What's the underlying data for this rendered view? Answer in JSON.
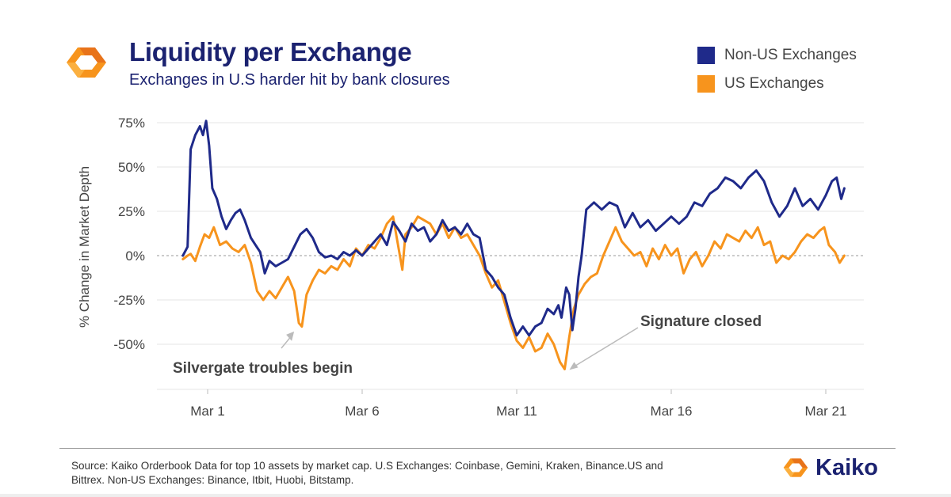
{
  "header": {
    "title": "Liquidity per Exchange",
    "subtitle": "Exchanges in U.S harder hit by bank closures",
    "logo_icon": "kaiko-logo-icon"
  },
  "legend": [
    {
      "label": "Non-US Exchanges",
      "color": "#1f2a8a"
    },
    {
      "label": "US Exchanges",
      "color": "#f7941d"
    }
  ],
  "chart_data": {
    "type": "line",
    "title": "Liquidity per Exchange",
    "subtitle": "Exchanges in U.S harder hit by bank closures",
    "ylabel": "% Change in Market Depth",
    "xlabel": "",
    "ylim": [
      -75,
      80
    ],
    "xlim": [
      -1.2,
      22
    ],
    "y_ticks": [
      75,
      50,
      25,
      0,
      -25,
      -50
    ],
    "y_tick_labels": [
      "75%",
      "50%",
      "25%",
      "0%",
      "-25%",
      "-50%"
    ],
    "x_ticks": [
      1,
      6,
      11,
      16,
      21
    ],
    "x_tick_labels": [
      "Mar 1",
      "Mar 6",
      "Mar 11",
      "Mar 16",
      "Mar 21"
    ],
    "grid": "horizontal",
    "legend_position": "top-right",
    "series": [
      {
        "name": "Non-US Exchanges",
        "color": "#1f2a8a",
        "points": [
          [
            0.2,
            0
          ],
          [
            0.35,
            5
          ],
          [
            0.45,
            60
          ],
          [
            0.6,
            68
          ],
          [
            0.75,
            73
          ],
          [
            0.85,
            68
          ],
          [
            0.95,
            76
          ],
          [
            1.05,
            62
          ],
          [
            1.15,
            38
          ],
          [
            1.3,
            32
          ],
          [
            1.45,
            22
          ],
          [
            1.6,
            15
          ],
          [
            1.75,
            20
          ],
          [
            1.9,
            24
          ],
          [
            2.05,
            26
          ],
          [
            2.2,
            20
          ],
          [
            2.4,
            10
          ],
          [
            2.55,
            6
          ],
          [
            2.7,
            2
          ],
          [
            2.85,
            -10
          ],
          [
            3.0,
            -3
          ],
          [
            3.2,
            -6
          ],
          [
            3.4,
            -4
          ],
          [
            3.6,
            -2
          ],
          [
            3.8,
            5
          ],
          [
            4.0,
            12
          ],
          [
            4.2,
            15
          ],
          [
            4.4,
            10
          ],
          [
            4.6,
            2
          ],
          [
            4.8,
            -1
          ],
          [
            5.0,
            0
          ],
          [
            5.2,
            -2
          ],
          [
            5.4,
            2
          ],
          [
            5.6,
            0
          ],
          [
            5.8,
            3
          ],
          [
            6.0,
            0
          ],
          [
            6.2,
            4
          ],
          [
            6.4,
            8
          ],
          [
            6.6,
            12
          ],
          [
            6.8,
            6
          ],
          [
            7.0,
            19
          ],
          [
            7.2,
            14
          ],
          [
            7.4,
            8
          ],
          [
            7.6,
            18
          ],
          [
            7.8,
            14
          ],
          [
            8.0,
            16
          ],
          [
            8.2,
            8
          ],
          [
            8.4,
            12
          ],
          [
            8.6,
            20
          ],
          [
            8.8,
            14
          ],
          [
            9.0,
            16
          ],
          [
            9.2,
            12
          ],
          [
            9.4,
            18
          ],
          [
            9.6,
            12
          ],
          [
            9.8,
            10
          ],
          [
            10.0,
            -8
          ],
          [
            10.2,
            -12
          ],
          [
            10.4,
            -18
          ],
          [
            10.6,
            -22
          ],
          [
            10.8,
            -35
          ],
          [
            11.0,
            -45
          ],
          [
            11.2,
            -40
          ],
          [
            11.4,
            -45
          ],
          [
            11.6,
            -40
          ],
          [
            11.8,
            -38
          ],
          [
            12.0,
            -30
          ],
          [
            12.2,
            -33
          ],
          [
            12.35,
            -28
          ],
          [
            12.45,
            -35
          ],
          [
            12.6,
            -18
          ],
          [
            12.7,
            -22
          ],
          [
            12.8,
            -42
          ],
          [
            12.9,
            -30
          ],
          [
            13.0,
            -12
          ],
          [
            13.1,
            0
          ],
          [
            13.25,
            26
          ],
          [
            13.5,
            30
          ],
          [
            13.75,
            26
          ],
          [
            14.0,
            30
          ],
          [
            14.25,
            28
          ],
          [
            14.5,
            16
          ],
          [
            14.75,
            24
          ],
          [
            15.0,
            16
          ],
          [
            15.25,
            20
          ],
          [
            15.5,
            14
          ],
          [
            15.75,
            18
          ],
          [
            16.0,
            22
          ],
          [
            16.25,
            18
          ],
          [
            16.5,
            22
          ],
          [
            16.75,
            30
          ],
          [
            17.0,
            28
          ],
          [
            17.25,
            35
          ],
          [
            17.5,
            38
          ],
          [
            17.75,
            44
          ],
          [
            18.0,
            42
          ],
          [
            18.25,
            38
          ],
          [
            18.5,
            44
          ],
          [
            18.75,
            48
          ],
          [
            19.0,
            42
          ],
          [
            19.25,
            30
          ],
          [
            19.5,
            22
          ],
          [
            19.75,
            28
          ],
          [
            20.0,
            38
          ],
          [
            20.25,
            28
          ],
          [
            20.5,
            32
          ],
          [
            20.75,
            26
          ],
          [
            21.0,
            34
          ],
          [
            21.2,
            42
          ],
          [
            21.35,
            44
          ],
          [
            21.5,
            32
          ],
          [
            21.6,
            38
          ]
        ]
      },
      {
        "name": "US Exchanges",
        "color": "#f7941d",
        "points": [
          [
            0.2,
            -2
          ],
          [
            0.35,
            0
          ],
          [
            0.45,
            1
          ],
          [
            0.6,
            -3
          ],
          [
            0.75,
            5
          ],
          [
            0.9,
            12
          ],
          [
            1.05,
            10
          ],
          [
            1.2,
            16
          ],
          [
            1.4,
            6
          ],
          [
            1.6,
            8
          ],
          [
            1.8,
            4
          ],
          [
            2.0,
            2
          ],
          [
            2.2,
            6
          ],
          [
            2.4,
            -4
          ],
          [
            2.6,
            -20
          ],
          [
            2.8,
            -25
          ],
          [
            3.0,
            -20
          ],
          [
            3.2,
            -24
          ],
          [
            3.4,
            -18
          ],
          [
            3.6,
            -12
          ],
          [
            3.8,
            -20
          ],
          [
            3.95,
            -38
          ],
          [
            4.05,
            -40
          ],
          [
            4.2,
            -22
          ],
          [
            4.4,
            -14
          ],
          [
            4.6,
            -8
          ],
          [
            4.8,
            -10
          ],
          [
            5.0,
            -6
          ],
          [
            5.2,
            -8
          ],
          [
            5.4,
            -2
          ],
          [
            5.6,
            -6
          ],
          [
            5.8,
            4
          ],
          [
            6.0,
            0
          ],
          [
            6.2,
            6
          ],
          [
            6.4,
            4
          ],
          [
            6.6,
            10
          ],
          [
            6.8,
            18
          ],
          [
            7.0,
            22
          ],
          [
            7.2,
            2
          ],
          [
            7.3,
            -8
          ],
          [
            7.4,
            12
          ],
          [
            7.6,
            16
          ],
          [
            7.8,
            22
          ],
          [
            8.0,
            20
          ],
          [
            8.2,
            18
          ],
          [
            8.4,
            12
          ],
          [
            8.6,
            18
          ],
          [
            8.8,
            10
          ],
          [
            9.0,
            16
          ],
          [
            9.2,
            10
          ],
          [
            9.4,
            12
          ],
          [
            9.6,
            6
          ],
          [
            9.8,
            0
          ],
          [
            10.0,
            -10
          ],
          [
            10.2,
            -18
          ],
          [
            10.4,
            -14
          ],
          [
            10.6,
            -26
          ],
          [
            10.8,
            -38
          ],
          [
            11.0,
            -48
          ],
          [
            11.2,
            -52
          ],
          [
            11.4,
            -46
          ],
          [
            11.6,
            -54
          ],
          [
            11.8,
            -52
          ],
          [
            12.0,
            -44
          ],
          [
            12.2,
            -50
          ],
          [
            12.4,
            -60
          ],
          [
            12.55,
            -64
          ],
          [
            12.7,
            -46
          ],
          [
            12.85,
            -30
          ],
          [
            13.0,
            -22
          ],
          [
            13.2,
            -16
          ],
          [
            13.4,
            -12
          ],
          [
            13.6,
            -10
          ],
          [
            13.8,
            0
          ],
          [
            14.0,
            8
          ],
          [
            14.2,
            16
          ],
          [
            14.4,
            8
          ],
          [
            14.6,
            4
          ],
          [
            14.8,
            0
          ],
          [
            15.0,
            2
          ],
          [
            15.2,
            -6
          ],
          [
            15.4,
            4
          ],
          [
            15.6,
            -2
          ],
          [
            15.8,
            6
          ],
          [
            16.0,
            0
          ],
          [
            16.2,
            4
          ],
          [
            16.4,
            -10
          ],
          [
            16.6,
            -2
          ],
          [
            16.8,
            2
          ],
          [
            17.0,
            -6
          ],
          [
            17.2,
            0
          ],
          [
            17.4,
            8
          ],
          [
            17.6,
            4
          ],
          [
            17.8,
            12
          ],
          [
            18.0,
            10
          ],
          [
            18.2,
            8
          ],
          [
            18.4,
            14
          ],
          [
            18.6,
            10
          ],
          [
            18.8,
            16
          ],
          [
            19.0,
            6
          ],
          [
            19.2,
            8
          ],
          [
            19.4,
            -4
          ],
          [
            19.6,
            0
          ],
          [
            19.8,
            -2
          ],
          [
            20.0,
            2
          ],
          [
            20.2,
            8
          ],
          [
            20.4,
            12
          ],
          [
            20.6,
            10
          ],
          [
            20.8,
            14
          ],
          [
            20.95,
            16
          ],
          [
            21.1,
            6
          ],
          [
            21.3,
            2
          ],
          [
            21.45,
            -4
          ],
          [
            21.6,
            0
          ]
        ]
      }
    ],
    "annotations": [
      {
        "text": "Silvergate troubles begin",
        "x": 3.9,
        "y": -41
      },
      {
        "text": "Signature closed",
        "x": 12.55,
        "y": -64
      }
    ]
  },
  "footer": {
    "source": "Source: Kaiko Orderbook Data for top 10 assets by market cap. U.S Exchanges: Coinbase, Gemini, Kraken, Binance.US and Bittrex. Non-US Exchanges: Binance, Itbit, Huobi, Bitstamp.",
    "brand": "Kaiko",
    "brand_icon": "kaiko-logo-icon"
  },
  "colors": {
    "navy": "#1b2270",
    "orange": "#f7941d"
  }
}
